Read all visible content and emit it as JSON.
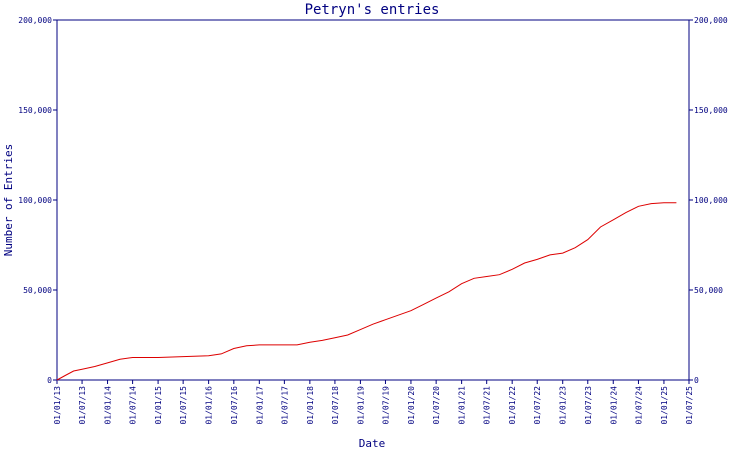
{
  "chart_data": {
    "type": "line",
    "title": "Petryn's entries",
    "xlabel": "Date",
    "ylabel": "Number of Entries",
    "ylim": [
      0,
      200000
    ],
    "grid": false,
    "y_ticks": [
      0,
      50000,
      100000,
      150000,
      200000
    ],
    "y_tick_labels": [
      "0",
      "50,000",
      "100,000",
      "150,000",
      "200,000"
    ],
    "x_tick_labels": [
      "01/01/13",
      "01/07/13",
      "01/01/14",
      "01/07/14",
      "01/01/15",
      "01/07/15",
      "01/01/16",
      "01/07/16",
      "01/01/17",
      "01/07/17",
      "01/01/18",
      "01/07/18",
      "01/01/19",
      "01/07/19",
      "01/01/20",
      "01/07/20",
      "01/01/21",
      "01/07/21",
      "01/01/22",
      "01/07/22",
      "01/01/23",
      "01/07/23",
      "01/01/24",
      "01/07/24",
      "01/01/25",
      "01/07/25"
    ],
    "colors": {
      "axis": "#000080",
      "series": "#dd0000"
    },
    "series": [
      {
        "x": [
          "2013-01-01",
          "2013-03-01",
          "2013-05-01",
          "2013-07-01",
          "2013-10-01",
          "2014-01-01",
          "2014-04-01",
          "2014-07-01",
          "2015-01-01",
          "2015-07-01",
          "2016-01-01",
          "2016-04-01",
          "2016-07-01",
          "2016-10-01",
          "2017-01-01",
          "2017-07-01",
          "2017-10-01",
          "2018-01-01",
          "2018-04-01",
          "2018-07-01",
          "2018-10-01",
          "2019-01-01",
          "2019-04-01",
          "2019-07-01",
          "2019-10-01",
          "2020-01-01",
          "2020-04-01",
          "2020-07-01",
          "2020-10-01",
          "2021-01-01",
          "2021-04-01",
          "2021-07-01",
          "2021-10-01",
          "2022-01-01",
          "2022-04-01",
          "2022-07-01",
          "2022-10-01",
          "2023-01-01",
          "2023-04-01",
          "2023-07-01",
          "2023-10-01",
          "2024-01-01",
          "2024-04-01",
          "2024-07-01",
          "2024-10-01",
          "2025-01-01",
          "2025-04-01"
        ],
        "values": [
          0,
          2500,
          5000,
          6000,
          7500,
          9500,
          11500,
          12500,
          12500,
          13000,
          13500,
          14500,
          17500,
          19000,
          19500,
          19500,
          19500,
          21000,
          22000,
          23500,
          25000,
          28000,
          31000,
          33500,
          36000,
          38500,
          42000,
          45500,
          49000,
          53500,
          56500,
          57500,
          58500,
          61500,
          65000,
          67000,
          69500,
          70500,
          73500,
          78000,
          85000,
          89000,
          93000,
          96500,
          98000,
          98500,
          98500
        ]
      }
    ]
  }
}
